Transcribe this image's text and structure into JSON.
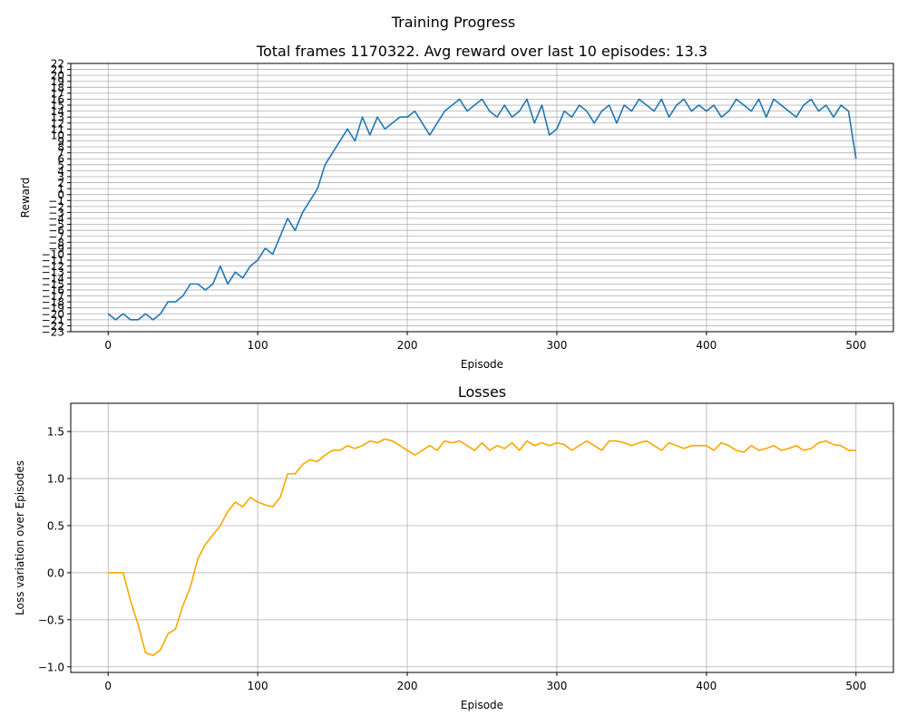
{
  "figure": {
    "suptitle": "Training Progress"
  },
  "chart_data": [
    {
      "type": "line",
      "title": "Total frames 1170322. Avg reward over last 10 episodes: 13.3",
      "xlabel": "Episode",
      "ylabel": "Reward",
      "xlim": [
        -25,
        525
      ],
      "ylim": [
        -23,
        22
      ],
      "xticks": [
        0,
        100,
        200,
        300,
        400,
        500
      ],
      "yticks": [
        -23,
        -22,
        -21,
        -20,
        -19,
        -18,
        -17,
        -16,
        -15,
        -14,
        -13,
        -12,
        -11,
        -10,
        -9,
        -8,
        -7,
        -6,
        -5,
        -4,
        -3,
        -2,
        -1,
        0,
        1,
        2,
        3,
        4,
        5,
        6,
        7,
        8,
        9,
        10,
        11,
        12,
        13,
        14,
        15,
        16,
        17,
        18,
        19,
        20,
        21,
        22
      ],
      "grid": true,
      "color": "#1f77b4",
      "series": [
        {
          "x": [
            0,
            5,
            10,
            15,
            20,
            25,
            30,
            35,
            40,
            45,
            50,
            55,
            60,
            65,
            70,
            75,
            80,
            85,
            90,
            95,
            100,
            105,
            110,
            115,
            120,
            125,
            130,
            135,
            140,
            145,
            150,
            155,
            160,
            165,
            170,
            175,
            180,
            185,
            190,
            195,
            200,
            205,
            210,
            215,
            220,
            225,
            230,
            235,
            240,
            245,
            250,
            255,
            260,
            265,
            270,
            275,
            280,
            285,
            290,
            295,
            300,
            305,
            310,
            315,
            320,
            325,
            330,
            335,
            340,
            345,
            350,
            355,
            360,
            365,
            370,
            375,
            380,
            385,
            390,
            395,
            400,
            405,
            410,
            415,
            420,
            425,
            430,
            435,
            440,
            445,
            450,
            455,
            460,
            465,
            470,
            475,
            480,
            485,
            490,
            495,
            500
          ],
          "values": [
            -20,
            -21,
            -20,
            -21,
            -21,
            -20,
            -21,
            -20,
            -18,
            -18,
            -17,
            -15,
            -15,
            -16,
            -15,
            -12,
            -15,
            -13,
            -14,
            -12,
            -11,
            -9,
            -10,
            -7,
            -4,
            -6,
            -3,
            -1,
            1,
            5,
            7,
            9,
            11,
            9,
            13,
            10,
            13,
            11,
            12,
            13,
            13,
            14,
            12,
            10,
            12,
            14,
            15,
            16,
            14,
            15,
            16,
            14,
            13,
            15,
            13,
            14,
            16,
            12,
            15,
            10,
            11,
            14,
            13,
            15,
            14,
            12,
            14,
            15,
            12,
            15,
            14,
            16,
            15,
            14,
            16,
            13,
            15,
            16,
            14,
            15,
            14,
            15,
            13,
            14,
            16,
            15,
            14,
            16,
            13,
            16,
            15,
            14,
            13,
            15,
            16,
            14,
            15,
            13,
            15,
            14,
            6
          ]
        }
      ]
    },
    {
      "type": "line",
      "title": "Losses",
      "xlabel": "Episode",
      "ylabel": "Loss variation over Episodes",
      "xlim": [
        -25,
        525
      ],
      "ylim": [
        -1.06,
        1.8
      ],
      "xticks": [
        0,
        100,
        200,
        300,
        400,
        500
      ],
      "yticks": [
        -1.0,
        -0.5,
        0.0,
        0.5,
        1.0,
        1.5
      ],
      "ytick_labels": [
        "−1.0",
        "−0.5",
        "0.0",
        "0.5",
        "1.0",
        "1.5"
      ],
      "grid": true,
      "color": "#ffa500",
      "series": [
        {
          "x": [
            0,
            5,
            10,
            15,
            20,
            25,
            30,
            35,
            40,
            45,
            50,
            55,
            60,
            65,
            70,
            75,
            80,
            85,
            90,
            95,
            100,
            105,
            110,
            115,
            120,
            125,
            130,
            135,
            140,
            145,
            150,
            155,
            160,
            165,
            170,
            175,
            180,
            185,
            190,
            195,
            200,
            205,
            210,
            215,
            220,
            225,
            230,
            235,
            240,
            245,
            250,
            255,
            260,
            265,
            270,
            275,
            280,
            285,
            290,
            295,
            300,
            305,
            310,
            315,
            320,
            325,
            330,
            335,
            340,
            345,
            350,
            355,
            360,
            365,
            370,
            375,
            380,
            385,
            390,
            395,
            400,
            405,
            410,
            415,
            420,
            425,
            430,
            435,
            440,
            445,
            450,
            455,
            460,
            465,
            470,
            475,
            480,
            485,
            490,
            495,
            500
          ],
          "values": [
            0.0,
            0.0,
            0.0,
            -0.3,
            -0.55,
            -0.85,
            -0.88,
            -0.82,
            -0.65,
            -0.6,
            -0.35,
            -0.15,
            0.15,
            0.3,
            0.4,
            0.5,
            0.65,
            0.75,
            0.7,
            0.8,
            0.75,
            0.72,
            0.7,
            0.8,
            1.05,
            1.05,
            1.15,
            1.2,
            1.18,
            1.25,
            1.3,
            1.3,
            1.35,
            1.32,
            1.35,
            1.4,
            1.38,
            1.42,
            1.4,
            1.35,
            1.3,
            1.25,
            1.3,
            1.35,
            1.3,
            1.4,
            1.38,
            1.4,
            1.35,
            1.3,
            1.38,
            1.3,
            1.35,
            1.32,
            1.38,
            1.3,
            1.4,
            1.35,
            1.38,
            1.35,
            1.38,
            1.36,
            1.3,
            1.35,
            1.4,
            1.35,
            1.3,
            1.4,
            1.4,
            1.38,
            1.35,
            1.38,
            1.4,
            1.35,
            1.3,
            1.38,
            1.35,
            1.32,
            1.35,
            1.35,
            1.35,
            1.3,
            1.38,
            1.35,
            1.3,
            1.28,
            1.35,
            1.3,
            1.32,
            1.35,
            1.3,
            1.32,
            1.35,
            1.3,
            1.32,
            1.38,
            1.4,
            1.36,
            1.35,
            1.3,
            1.3
          ]
        }
      ]
    }
  ]
}
